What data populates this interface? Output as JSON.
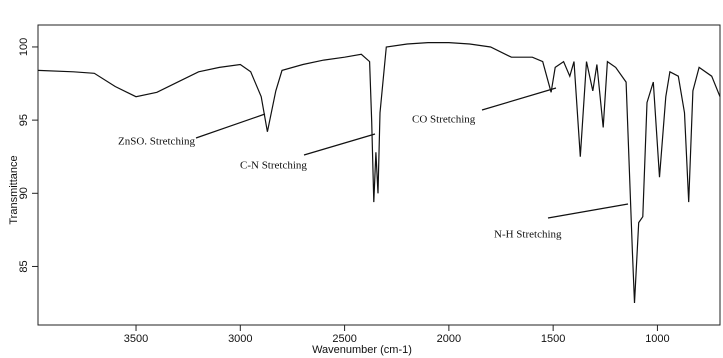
{
  "chart_data": {
    "type": "line",
    "x_label": "Wavenumber (cm-1)",
    "y_label": "Transmittance",
    "color": "#111111",
    "xlim": [
      3970,
      700
    ],
    "ylim": [
      81,
      101.5
    ],
    "xticks": [
      3500,
      3000,
      2500,
      2000,
      1500,
      1000
    ],
    "yticks": [
      85,
      90,
      95,
      100
    ],
    "x": [
      3970,
      3800,
      3700,
      3600,
      3500,
      3400,
      3300,
      3200,
      3100,
      3000,
      2950,
      2900,
      2870,
      2830,
      2800,
      2700,
      2600,
      2500,
      2420,
      2380,
      2370,
      2360,
      2350,
      2340,
      2330,
      2300,
      2200,
      2100,
      2000,
      1900,
      1800,
      1700,
      1600,
      1550,
      1510,
      1490,
      1450,
      1420,
      1400,
      1370,
      1340,
      1310,
      1290,
      1260,
      1240,
      1200,
      1150,
      1120,
      1110,
      1090,
      1070,
      1050,
      1020,
      990,
      960,
      940,
      900,
      870,
      850,
      830,
      800,
      740,
      700
    ],
    "values": [
      98.4,
      98.3,
      98.2,
      97.3,
      96.6,
      96.9,
      97.6,
      98.3,
      98.6,
      98.8,
      98.3,
      96.6,
      94.2,
      97.0,
      98.4,
      98.8,
      99.1,
      99.3,
      99.5,
      99.0,
      94.9,
      89.4,
      92.8,
      90.0,
      95.5,
      100.0,
      100.2,
      100.3,
      100.3,
      100.2,
      100.0,
      99.3,
      99.3,
      99.0,
      96.9,
      98.6,
      99.0,
      98.0,
      99.0,
      92.5,
      99.0,
      97.0,
      98.8,
      94.5,
      99.0,
      98.6,
      97.6,
      86.0,
      82.5,
      88.0,
      88.4,
      96.2,
      97.6,
      91.1,
      96.6,
      98.3,
      98.0,
      95.5,
      89.4,
      97.0,
      98.6,
      98.0,
      96.6
    ],
    "annotations": [
      "ZnSO. Stretching",
      "C-N Stretching",
      "CO Stretching",
      "N-H Stretching"
    ]
  }
}
